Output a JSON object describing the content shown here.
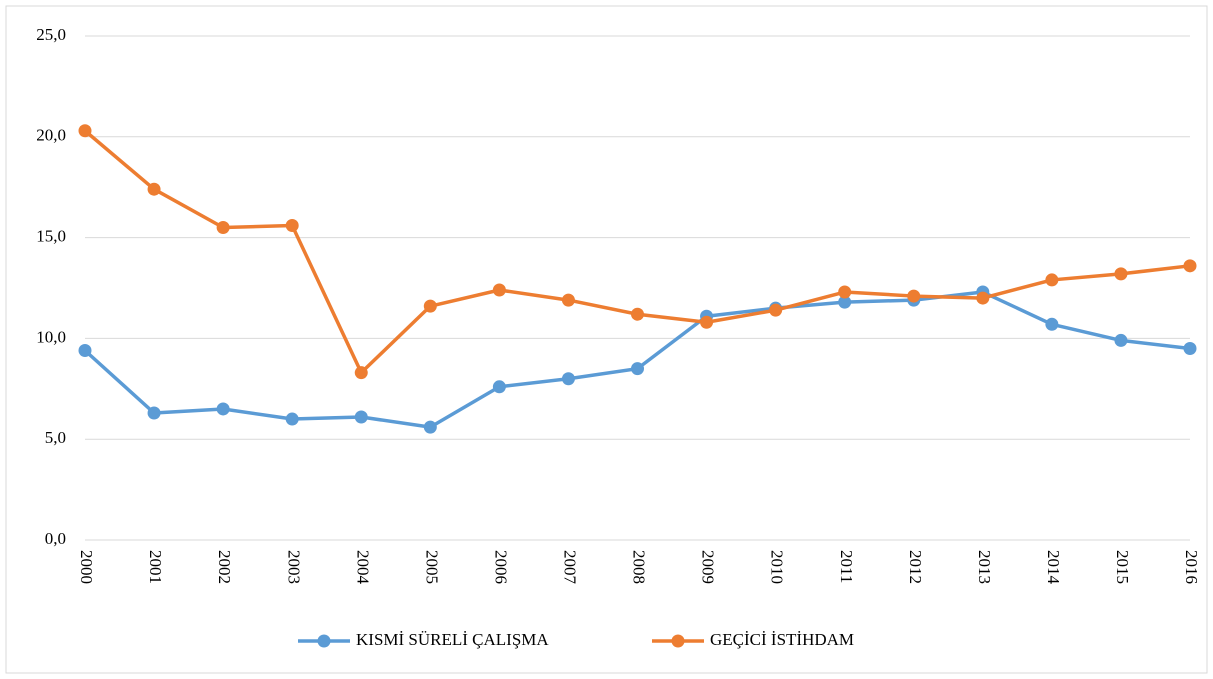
{
  "chart_data": {
    "type": "line",
    "categories": [
      "2000",
      "2001",
      "2002",
      "2003",
      "2004",
      "2005",
      "2006",
      "2007",
      "2008",
      "2009",
      "2010",
      "2011",
      "2012",
      "2013",
      "2014",
      "2015",
      "2016"
    ],
    "series": [
      {
        "name": "KISMİ SÜRELİ ÇALIŞMA",
        "color": "#5b9bd5",
        "values": [
          9.4,
          6.3,
          6.5,
          6.0,
          6.1,
          5.6,
          7.6,
          8.0,
          8.5,
          11.1,
          11.5,
          11.8,
          11.9,
          12.3,
          10.7,
          9.9,
          9.5
        ]
      },
      {
        "name": "GEÇİCİ İSTİHDAM",
        "color": "#ed7d31",
        "values": [
          20.3,
          17.4,
          15.5,
          15.6,
          8.3,
          11.6,
          12.4,
          11.9,
          11.2,
          10.8,
          11.4,
          12.3,
          12.1,
          12.0,
          12.9,
          13.2,
          13.6
        ]
      }
    ],
    "ylim": [
      0,
      25
    ],
    "yticks": [
      {
        "value": 0,
        "label": "0,0"
      },
      {
        "value": 5,
        "label": "5,0"
      },
      {
        "value": 10,
        "label": "10,0"
      },
      {
        "value": 15,
        "label": "15,0"
      },
      {
        "value": 20,
        "label": "20,0"
      },
      {
        "value": 25,
        "label": "25,0"
      }
    ],
    "grid": true,
    "legend": "bottom"
  }
}
